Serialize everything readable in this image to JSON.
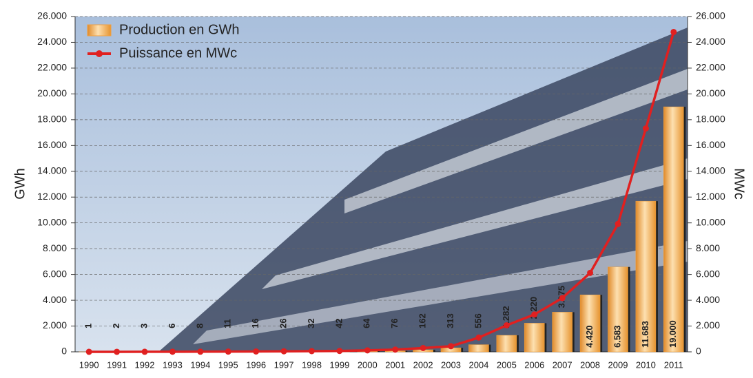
{
  "chart_data": {
    "type": "bar-line",
    "categories": [
      "1990",
      "1991",
      "1992",
      "1993",
      "1994",
      "1995",
      "1996",
      "1997",
      "1998",
      "1999",
      "2000",
      "2001",
      "2002",
      "2003",
      "2004",
      "2005",
      "2006",
      "2007",
      "2008",
      "2009",
      "2010",
      "2011"
    ],
    "series": [
      {
        "name": "Production en GWh",
        "type": "bar",
        "color": "#f0a040",
        "values": [
          1,
          2,
          3,
          6,
          8,
          11,
          16,
          26,
          32,
          42,
          64,
          76,
          162,
          313,
          556,
          1282,
          2220,
          3075,
          4420,
          6583,
          11683,
          19000
        ],
        "value_labels": [
          "1",
          "2",
          "3",
          "6",
          "8",
          "11",
          "16",
          "26",
          "32",
          "42",
          "64",
          "76",
          "162",
          "313",
          "556",
          "1.282",
          "2.220",
          "3.075",
          "4.420",
          "6.583",
          "11.683",
          "19.000"
        ]
      },
      {
        "name": "Puissance en MWc",
        "type": "line",
        "axis": "y2",
        "color": "#e02020",
        "values": [
          1,
          3,
          6,
          9,
          12,
          18,
          28,
          42,
          54,
          70,
          114,
          176,
          296,
          435,
          1105,
          2056,
          2899,
          4170,
          6120,
          9914,
          17320,
          24800
        ]
      }
    ],
    "ylabel": "GWh",
    "y2label": "MWc",
    "ylim": [
      0,
      26000
    ],
    "yticks": [
      0,
      {
        "value": 2000,
        "label": "2.000"
      },
      {
        "value": 4000,
        "label": "4.000"
      },
      {
        "value": 6000,
        "label": "6.000"
      },
      {
        "value": 8000,
        "label": "8.000"
      },
      {
        "value": 10000,
        "label": "10.000"
      },
      {
        "value": 12000,
        "label": "12.000"
      },
      {
        "value": 14000,
        "label": "14.000"
      },
      {
        "value": 16000,
        "label": "16.000"
      },
      {
        "value": 18000,
        "label": "18.000"
      },
      {
        "value": 20000,
        "label": "20.000"
      },
      {
        "value": 22000,
        "label": "22.000"
      },
      {
        "value": 24000,
        "label": "24.000"
      },
      {
        "value": 26000,
        "label": "26.000"
      }
    ],
    "y2lim": [
      0,
      26000
    ],
    "y2ticks": [
      0,
      {
        "value": 2000,
        "label": "2.000"
      },
      {
        "value": 4000,
        "label": "4.000"
      },
      {
        "value": 6000,
        "label": "6.000"
      },
      {
        "value": 8000,
        "label": "8.000"
      },
      {
        "value": 10000,
        "label": "10.000"
      },
      {
        "value": 12000,
        "label": "12.000"
      },
      {
        "value": 14000,
        "label": "14.000"
      },
      {
        "value": 16000,
        "label": "16.000"
      },
      {
        "value": 18000,
        "label": "18.000"
      },
      {
        "value": 20000,
        "label": "20.000"
      },
      {
        "value": 22000,
        "label": "22.000"
      },
      {
        "value": 24000,
        "label": "24.000"
      },
      {
        "value": 26000,
        "label": "26.000"
      }
    ],
    "grid": true,
    "legend": "top-left"
  }
}
